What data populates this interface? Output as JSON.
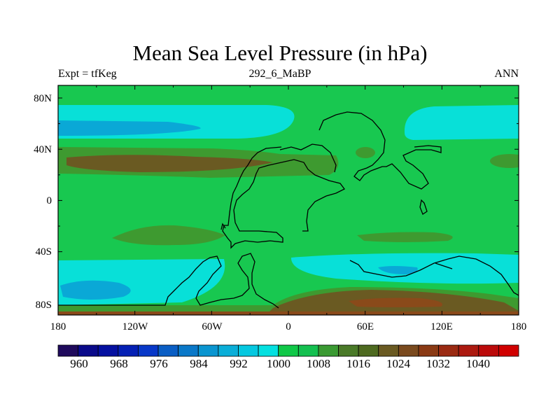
{
  "title": "Mean Sea Level Pressure (in hPa)",
  "left_string": "Expt = tfKeg",
  "center_string": "292_6_MaBP",
  "right_string": "ANN",
  "axes": {
    "y_ticks": [
      "80N",
      "40N",
      "0",
      "40S",
      "80S"
    ],
    "x_ticks": [
      "180",
      "120W",
      "60W",
      "0",
      "60E",
      "120E",
      "180"
    ]
  },
  "colorbar": {
    "labels": [
      "960",
      "968",
      "976",
      "984",
      "992",
      "1000",
      "1008",
      "1016",
      "1024",
      "1032",
      "1040"
    ],
    "colors": [
      "#1f0a5c",
      "#0a0a8a",
      "#0510a0",
      "#0520b4",
      "#0838c8",
      "#0a5ec4",
      "#0a78c8",
      "#0a95d0",
      "#0aaed8",
      "#05c8e0",
      "#05e0e0",
      "#10c848",
      "#14c050",
      "#3a9a32",
      "#4a7a28",
      "#4e6a20",
      "#6a5a22",
      "#7a4a1e",
      "#8a3a14",
      "#9a2a12",
      "#ac1a10",
      "#bb0a0a",
      "#d00000"
    ]
  },
  "map_colors": {
    "background": "#18c850",
    "low_cyan": "#08e0d8",
    "low_blue": "#0aa8d6",
    "high_olive": "#3e9a30",
    "high_brown": "#6a5a22",
    "high_rust": "#8a4a1a",
    "coast": "#000000"
  }
}
